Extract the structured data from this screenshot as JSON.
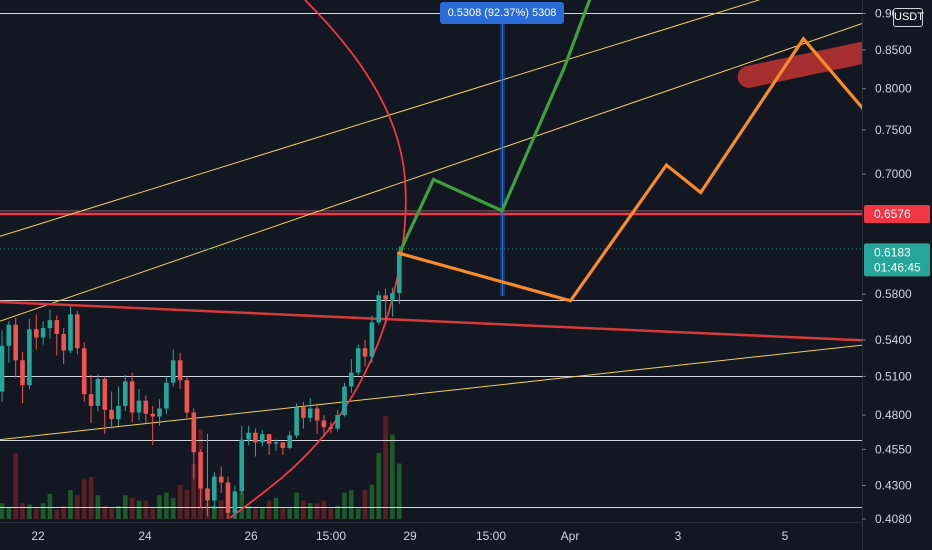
{
  "chart_data": {
    "type": "candlestick",
    "y_unit": "USDT",
    "ylim": [
      0.408,
      0.902
    ],
    "y_scale": "log",
    "grid": false,
    "y_ticks": [
      "0.9000",
      "0.8500",
      "0.8000",
      "0.7500",
      "0.7000",
      "0.6576",
      "0.6183",
      "0.5800",
      "0.5400",
      "0.5100",
      "0.4800",
      "0.4550",
      "0.4300",
      "0.4080"
    ],
    "x_ticks": [
      "22",
      "24",
      "26",
      "15:00",
      "29",
      "15:00",
      "Apr",
      "3",
      "5"
    ],
    "current_price": "0.6183",
    "countdown": "01:46:45",
    "resistance_price": "0.6576",
    "measure_label": "0.5308 (92.37%) 5308",
    "horizontal_levels": [
      0.9,
      0.658,
      0.575,
      0.51,
      0.462,
      0.416
    ],
    "candles": [
      [
        0.498,
        0.535,
        0.49,
        0.548
      ],
      [
        0.535,
        0.553,
        0.521,
        0.556
      ],
      [
        0.553,
        0.523,
        0.509,
        0.559
      ],
      [
        0.523,
        0.503,
        0.489,
        0.53
      ],
      [
        0.503,
        0.549,
        0.5,
        0.558
      ],
      [
        0.549,
        0.542,
        0.532,
        0.562
      ],
      [
        0.542,
        0.55,
        0.536,
        0.556
      ],
      [
        0.55,
        0.557,
        0.541,
        0.566
      ],
      [
        0.557,
        0.545,
        0.527,
        0.561
      ],
      [
        0.545,
        0.531,
        0.52,
        0.55
      ],
      [
        0.531,
        0.562,
        0.529,
        0.569
      ],
      [
        0.562,
        0.533,
        0.528,
        0.565
      ],
      [
        0.533,
        0.496,
        0.49,
        0.538
      ],
      [
        0.496,
        0.487,
        0.474,
        0.511
      ],
      [
        0.487,
        0.508,
        0.483,
        0.512
      ],
      [
        0.508,
        0.484,
        0.466,
        0.51
      ],
      [
        0.484,
        0.477,
        0.47,
        0.498
      ],
      [
        0.477,
        0.487,
        0.472,
        0.502
      ],
      [
        0.487,
        0.506,
        0.483,
        0.511
      ],
      [
        0.506,
        0.482,
        0.475,
        0.513
      ],
      [
        0.482,
        0.491,
        0.476,
        0.5
      ],
      [
        0.491,
        0.481,
        0.474,
        0.495
      ],
      [
        0.481,
        0.479,
        0.458,
        0.487
      ],
      [
        0.479,
        0.485,
        0.472,
        0.492
      ],
      [
        0.485,
        0.505,
        0.481,
        0.51
      ],
      [
        0.505,
        0.523,
        0.502,
        0.532
      ],
      [
        0.523,
        0.507,
        0.5,
        0.529
      ],
      [
        0.507,
        0.482,
        0.478,
        0.51
      ],
      [
        0.482,
        0.453,
        0.434,
        0.485
      ],
      [
        0.453,
        0.428,
        0.415,
        0.455
      ],
      [
        0.428,
        0.42,
        0.41,
        0.466
      ],
      [
        0.42,
        0.436,
        0.414,
        0.439
      ],
      [
        0.436,
        0.432,
        0.425,
        0.443
      ],
      [
        0.432,
        0.412,
        0.408,
        0.436
      ],
      [
        0.412,
        0.426,
        0.408,
        0.43
      ],
      [
        0.426,
        0.462,
        0.424,
        0.472
      ],
      [
        0.462,
        0.467,
        0.458,
        0.472
      ],
      [
        0.467,
        0.46,
        0.45,
        0.47
      ],
      [
        0.46,
        0.466,
        0.457,
        0.469
      ],
      [
        0.466,
        0.459,
        0.451,
        0.464
      ],
      [
        0.459,
        0.46,
        0.454,
        0.462
      ],
      [
        0.46,
        0.456,
        0.451,
        0.458
      ],
      [
        0.456,
        0.465,
        0.455,
        0.468
      ],
      [
        0.465,
        0.486,
        0.463,
        0.489
      ],
      [
        0.486,
        0.478,
        0.47,
        0.49
      ],
      [
        0.478,
        0.485,
        0.475,
        0.493
      ],
      [
        0.485,
        0.476,
        0.466,
        0.489
      ],
      [
        0.476,
        0.471,
        0.464,
        0.48
      ],
      [
        0.471,
        0.47,
        0.467,
        0.475
      ],
      [
        0.47,
        0.48,
        0.468,
        0.484
      ],
      [
        0.48,
        0.502,
        0.479,
        0.505
      ],
      [
        0.502,
        0.513,
        0.497,
        0.524
      ],
      [
        0.513,
        0.533,
        0.511,
        0.536
      ],
      [
        0.533,
        0.526,
        0.518,
        0.54
      ],
      [
        0.526,
        0.555,
        0.521,
        0.561
      ],
      [
        0.555,
        0.579,
        0.553,
        0.583
      ],
      [
        0.579,
        0.575,
        0.554,
        0.585
      ],
      [
        0.575,
        0.581,
        0.56,
        0.586
      ],
      [
        0.581,
        0.62,
        0.571,
        0.625
      ]
    ],
    "volumes": [
      0.12,
      0.09,
      0.5,
      0.12,
      0.11,
      0.08,
      0.12,
      0.19,
      0.07,
      0.1,
      0.22,
      0.18,
      0.3,
      0.32,
      0.18,
      0.1,
      0.08,
      0.1,
      0.18,
      0.16,
      0.14,
      0.14,
      0.08,
      0.18,
      0.2,
      0.16,
      0.26,
      0.22,
      0.42,
      0.68,
      0.13,
      0.1,
      0.14,
      0.08,
      0.1,
      0.2,
      0.1,
      0.08,
      0.09,
      0.14,
      0.16,
      0.08,
      0.08,
      0.2,
      0.14,
      0.12,
      0.12,
      0.14,
      0.08,
      0.1,
      0.2,
      0.22,
      0.08,
      0.22,
      0.26,
      0.5,
      0.78,
      0.64,
      0.42
    ],
    "trend_lines": [
      {
        "from": [
          0,
          0.635
        ],
        "to": [
          932,
          1.0
        ],
        "color": "#f0d060",
        "width": 1
      },
      {
        "from": [
          0,
          0.556
        ],
        "to": [
          932,
          0.92
        ],
        "color": "#f0d060",
        "width": 1
      },
      {
        "from": [
          0,
          0.462
        ],
        "to": [
          932,
          0.542
        ],
        "color": "#f0d060",
        "width": 1
      },
      {
        "from": [
          0,
          0.573
        ],
        "to": [
          932,
          0.537
        ],
        "color": "#d63a3a",
        "width": 2.5
      }
    ],
    "projection_bullish": {
      "color": "#3f9f3f",
      "points": [
        [
          0.6183,
          0
        ],
        [
          0.694,
          5
        ],
        [
          0.661,
          15
        ],
        [
          0.825,
          24
        ],
        [
          0.925,
          28
        ]
      ]
    },
    "projection_bearish": {
      "color": "#f58b2a",
      "points": [
        [
          0.6183,
          0
        ],
        [
          0.574,
          25
        ],
        [
          0.71,
          39
        ],
        [
          0.68,
          44
        ],
        [
          0.865,
          59
        ],
        [
          0.69,
          77
        ],
        [
          0.94,
          82
        ]
      ]
    },
    "target_zone": {
      "color": "#b33030",
      "from": [
        0.815,
        51
      ],
      "to": [
        0.89,
        90
      ]
    },
    "colors": {
      "background": "#131722",
      "up": "#26a69a",
      "down": "#ef5350",
      "resistance": "#f23645",
      "tag_current": "#26a69a",
      "curve": "#f23645",
      "measure": "#2a6bd8",
      "level": "#d1d4dc"
    }
  }
}
